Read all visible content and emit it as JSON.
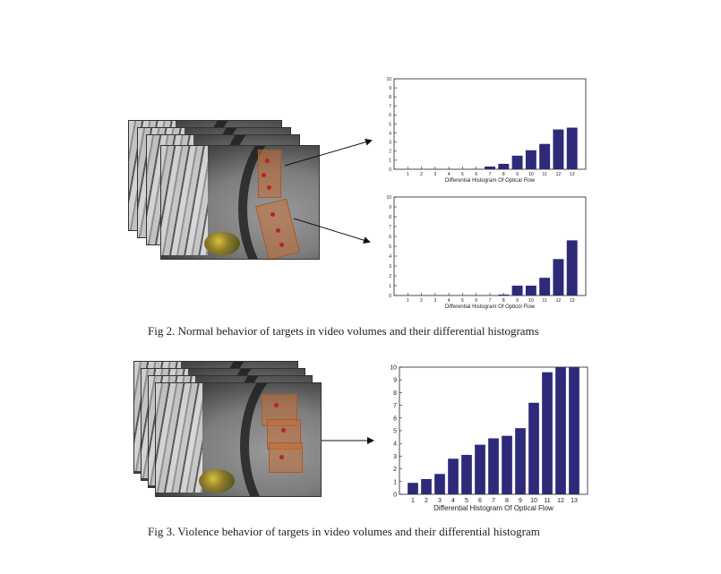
{
  "figures": {
    "fig2": {
      "caption": "Fig 2. Normal behavior of targets in video volumes and their differential histograms"
    },
    "fig3": {
      "caption": "Fig 3. Violence behavior of targets in video volumes and their differential histogram"
    }
  },
  "chart_data": [
    {
      "type": "bar",
      "categories": [
        "1",
        "2",
        "3",
        "4",
        "5",
        "6",
        "7",
        "8",
        "9",
        "10",
        "11",
        "12",
        "13"
      ],
      "values": [
        0,
        0,
        0,
        0,
        0,
        0.05,
        0.3,
        0.6,
        1.5,
        2.1,
        2.8,
        4.4,
        4.6
      ],
      "title": "",
      "xlabel": "Differential Histogram Of Optical Flow",
      "ylabel": "",
      "ylim": [
        0,
        10
      ],
      "yticks": [
        "0",
        "1",
        "2",
        "3",
        "4",
        "5",
        "6",
        "7",
        "8",
        "9",
        "10"
      ],
      "grid": false,
      "color": "#2e2a7a"
    },
    {
      "type": "bar",
      "categories": [
        "1",
        "2",
        "3",
        "4",
        "5",
        "6",
        "7",
        "8",
        "9",
        "10",
        "11",
        "12",
        "13"
      ],
      "values": [
        0,
        0,
        0,
        0,
        0,
        0,
        0,
        0.1,
        1.0,
        1.0,
        1.8,
        3.7,
        5.6
      ],
      "title": "",
      "xlabel": "Differential Histogram Of Opticol Flow",
      "ylabel": "",
      "ylim": [
        0,
        10
      ],
      "yticks": [
        "0",
        "1",
        "2",
        "3",
        "4",
        "5",
        "6",
        "7",
        "8",
        "9",
        "10"
      ],
      "grid": false,
      "color": "#2e2a7a"
    },
    {
      "type": "bar",
      "categories": [
        "1",
        "2",
        "3",
        "4",
        "5",
        "6",
        "7",
        "8",
        "9",
        "10",
        "11",
        "12",
        "13"
      ],
      "values": [
        0.9,
        1.2,
        1.6,
        2.8,
        3.1,
        3.9,
        4.4,
        4.6,
        5.2,
        7.2,
        9.6,
        10,
        10
      ],
      "title": "",
      "xlabel": "Differential Histogram Of Optical Flow",
      "ylabel": "",
      "ylim": [
        0,
        10
      ],
      "yticks": [
        "0",
        "1",
        "2",
        "3",
        "4",
        "5",
        "6",
        "7",
        "8",
        "9",
        "10"
      ],
      "grid": false,
      "color": "#2e2a7a"
    }
  ]
}
